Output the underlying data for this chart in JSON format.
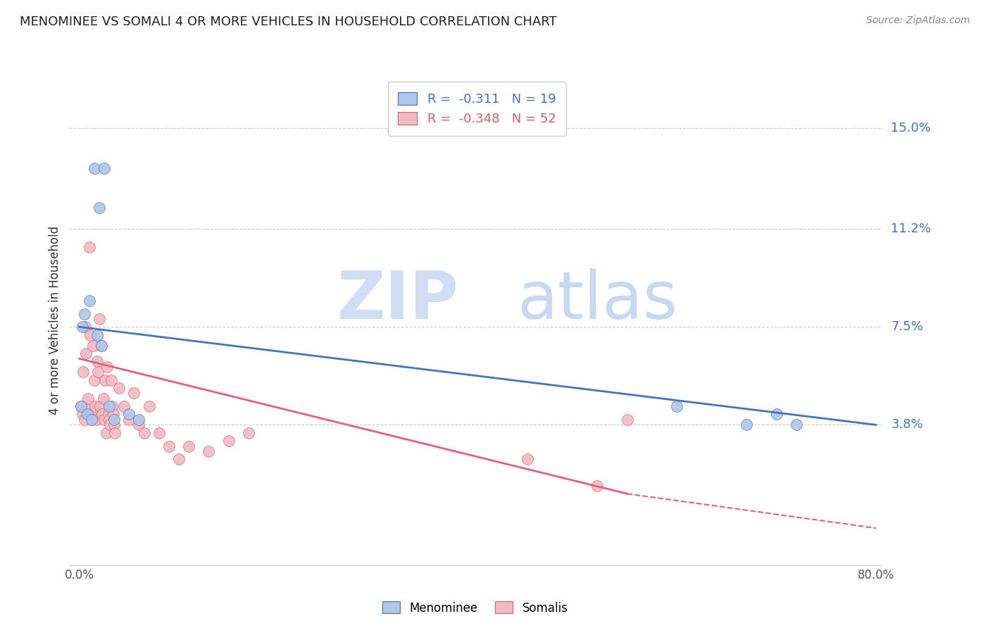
{
  "title": "MENOMINEE VS SOMALI 4 OR MORE VEHICLES IN HOUSEHOLD CORRELATION CHART",
  "source": "Source: ZipAtlas.com",
  "ylabel": "4 or more Vehicles in Household",
  "xlim_data": [
    0.0,
    80.0
  ],
  "ylim_data": [
    0.0,
    16.0
  ],
  "ytick_vals": [
    3.8,
    7.5,
    11.2,
    15.0
  ],
  "ytick_labels": [
    "3.8%",
    "7.5%",
    "11.2%",
    "15.0%"
  ],
  "xtick_vals": [
    0.0,
    10.0,
    20.0,
    30.0,
    40.0,
    50.0,
    60.0,
    70.0,
    80.0
  ],
  "xtick_labels": [
    "0.0%",
    "",
    "",
    "",
    "",
    "",
    "",
    "",
    "80.0%"
  ],
  "legend_label_menominee": "Menominee",
  "legend_label_somali": "Somalis",
  "color_menominee_fill": "#aec6e8",
  "color_menominee_edge": "#4472c4",
  "color_somali_fill": "#f4b8c1",
  "color_somali_edge": "#d06070",
  "color_line_menominee": "#4472c4",
  "color_line_somali": "#e06080",
  "watermark_zip_color": "#d0ddf5",
  "watermark_atlas_color": "#c8d8f0",
  "legend_r_menominee": "R =  -0.311   N = 19",
  "legend_r_somali": "R =  -0.348   N = 52",
  "menominee_line_x0": 0.0,
  "menominee_line_y0": 7.5,
  "menominee_line_x1": 80.0,
  "menominee_line_y1": 3.8,
  "somali_line_x0": 0.0,
  "somali_line_y0": 6.3,
  "somali_line_x1": 55.0,
  "somali_line_y1": 1.2,
  "somali_dash_x0": 55.0,
  "somali_dash_y0": 1.2,
  "somali_dash_x1": 80.0,
  "somali_dash_y1": -0.1,
  "menominee_x": [
    1.5,
    2.5,
    2.0,
    1.0,
    0.5,
    0.3,
    0.2,
    0.8,
    1.2,
    1.8,
    2.2,
    3.0,
    3.5,
    5.0,
    6.0,
    60.0,
    67.0,
    70.0,
    72.0
  ],
  "menominee_y": [
    13.5,
    13.5,
    12.0,
    8.5,
    8.0,
    7.5,
    4.5,
    4.2,
    4.0,
    7.2,
    6.8,
    4.5,
    4.0,
    4.2,
    4.0,
    4.5,
    3.8,
    4.2,
    3.8
  ],
  "somali_x": [
    0.2,
    0.3,
    0.4,
    0.5,
    0.6,
    0.7,
    0.8,
    0.9,
    1.0,
    1.1,
    1.2,
    1.3,
    1.4,
    1.5,
    1.6,
    1.7,
    1.8,
    1.9,
    2.0,
    2.1,
    2.2,
    2.3,
    2.4,
    2.5,
    2.6,
    2.7,
    2.8,
    2.9,
    3.0,
    3.1,
    3.2,
    3.3,
    3.4,
    3.5,
    3.6,
    4.0,
    4.5,
    5.0,
    5.5,
    6.0,
    6.5,
    7.0,
    8.0,
    9.0,
    10.0,
    11.0,
    13.0,
    15.0,
    17.0,
    45.0,
    52.0,
    55.0
  ],
  "somali_y": [
    4.5,
    4.2,
    5.8,
    4.0,
    7.5,
    6.5,
    4.5,
    4.8,
    10.5,
    7.2,
    4.2,
    4.0,
    6.8,
    5.5,
    4.5,
    4.0,
    6.2,
    5.8,
    7.8,
    4.5,
    6.8,
    4.2,
    4.8,
    4.0,
    5.5,
    3.5,
    6.0,
    4.2,
    4.0,
    3.8,
    5.5,
    4.5,
    4.2,
    3.8,
    3.5,
    5.2,
    4.5,
    4.0,
    5.0,
    3.8,
    3.5,
    4.5,
    3.5,
    3.0,
    2.5,
    3.0,
    2.8,
    3.2,
    3.5,
    2.5,
    1.5,
    4.0
  ]
}
